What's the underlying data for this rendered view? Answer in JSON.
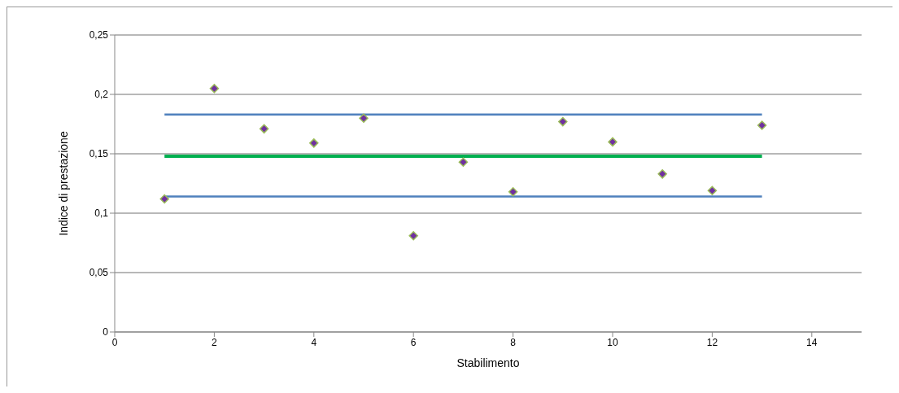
{
  "chart_data": {
    "type": "scatter",
    "xlabel": "Stabilimento",
    "ylabel": "Indice di prestazione",
    "xlim": [
      0,
      15
    ],
    "xticks": [
      0,
      2,
      4,
      6,
      8,
      10,
      12,
      14
    ],
    "ylim": [
      0,
      0.25
    ],
    "yticks": [
      {
        "value": 0,
        "label": "0"
      },
      {
        "value": 0.05,
        "label": "0,05"
      },
      {
        "value": 0.1,
        "label": "0,1"
      },
      {
        "value": 0.15,
        "label": "0,15"
      },
      {
        "value": 0.2,
        "label": "0,2"
      },
      {
        "value": 0.25,
        "label": "0,25"
      }
    ],
    "grid": "y",
    "series": [
      {
        "type": "line",
        "color": "#4f81bd",
        "x": [
          1,
          13
        ],
        "values": [
          0.183,
          0.183
        ]
      },
      {
        "type": "line",
        "color": "#00b050",
        "x": [
          1,
          13
        ],
        "values": [
          0.148,
          0.148
        ]
      },
      {
        "type": "line",
        "color": "#4f81bd",
        "x": [
          1,
          13
        ],
        "values": [
          0.114,
          0.114
        ]
      },
      {
        "marker": "diamond",
        "color": "#7030a0",
        "x": [
          1,
          2,
          3,
          4,
          5,
          6,
          7,
          8,
          9,
          10,
          11,
          12,
          13
        ],
        "values": [
          0.112,
          0.205,
          0.171,
          0.159,
          0.18,
          0.081,
          0.143,
          0.118,
          0.177,
          0.16,
          0.133,
          0.119,
          0.174
        ]
      }
    ]
  }
}
